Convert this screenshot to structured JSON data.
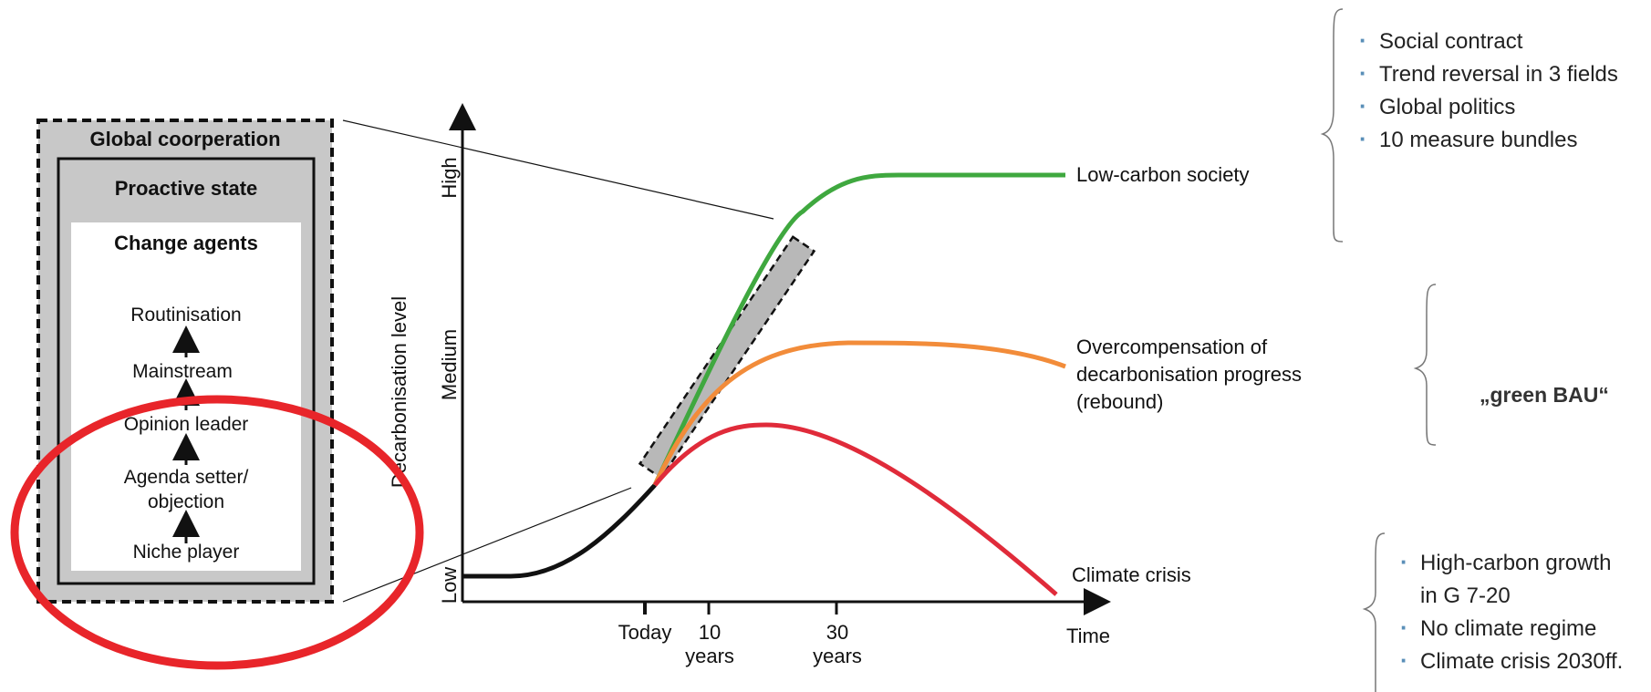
{
  "left_box": {
    "outer_title": "Global coorperation",
    "middle_title": "Proactive state",
    "inner_title": "Change agents",
    "stages": [
      "Routinisation",
      "Mainstream",
      "Opinion leader",
      "Agenda setter/",
      "objection",
      "Niche player"
    ]
  },
  "chart": {
    "y_axis_label": "Decarbonisation level",
    "y_ticks": [
      "Low",
      "Medium",
      "High"
    ],
    "x_ticks": [
      "Today",
      "10",
      "years",
      "30",
      "years"
    ],
    "x_axis_label": "Time",
    "curve_labels": {
      "low_carbon": "Low-carbon society",
      "rebound_1": "Overcompensation of",
      "rebound_2": "decarbonisation progress",
      "rebound_3": "(rebound)",
      "crisis": "Climate crisis"
    },
    "colors": {
      "green": "#3fa83f",
      "orange": "#f28c3a",
      "red": "#e02b3a",
      "black": "#111111",
      "highlight": "#e8252a"
    }
  },
  "right_notes": {
    "top_bullets": [
      "Social contract",
      "Trend reversal in 3 fields",
      "Global politics",
      "10 measure bundles"
    ],
    "middle": "„green BAU“",
    "bottom_bullets": [
      "High-carbon growth",
      "in G 7-20",
      "No climate regime",
      "Climate crisis 2030ff."
    ]
  }
}
